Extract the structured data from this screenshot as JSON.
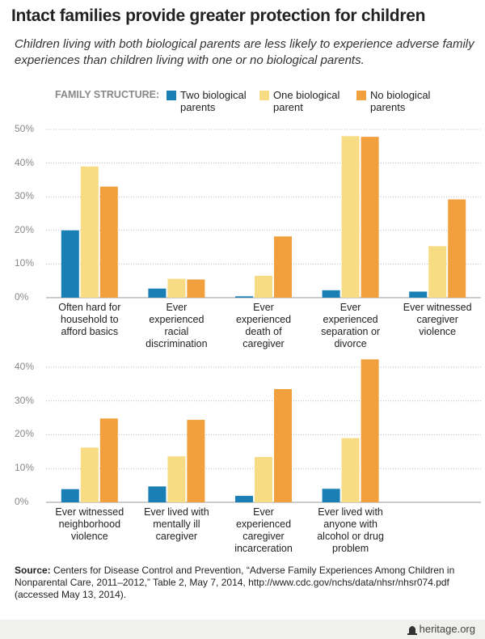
{
  "header": {
    "title": "Intact families provide greater protection for children",
    "subtitle": "Children living with both biological parents are less likely to experience adverse family experiences than children living with one or no biological parents."
  },
  "legend": {
    "title": "FAMILY STRUCTURE:"
  },
  "chart_data": [
    {
      "type": "bar",
      "categories": [
        "Often hard for household to afford basics",
        "Ever experienced racial discrimination",
        "Ever experienced death of caregiver",
        "Ever experienced separation or divorce",
        "Ever witnessed caregiver violence"
      ],
      "series": [
        {
          "name": "Two biological parents",
          "color": "#1a7fb5",
          "values": [
            20,
            2.7,
            0.4,
            2.2,
            1.8
          ]
        },
        {
          "name": "One biological parent",
          "color": "#f7dc84",
          "values": [
            39,
            5.6,
            6.5,
            48,
            15.3
          ]
        },
        {
          "name": "No biological parents",
          "color": "#f2a03d",
          "values": [
            33,
            5.4,
            18.2,
            47.8,
            29.2
          ]
        }
      ],
      "ylim": [
        0,
        50
      ],
      "yticks": [
        {
          "value": 0,
          "label": "0%"
        },
        {
          "value": 10,
          "label": "10%"
        },
        {
          "value": 20,
          "label": "20%"
        },
        {
          "value": 30,
          "label": "30%"
        },
        {
          "value": 40,
          "label": "40%"
        },
        {
          "value": 50,
          "label": "50%"
        }
      ],
      "grid": true
    },
    {
      "type": "bar",
      "categories": [
        "Ever witnessed neighborhood violence",
        "Ever lived with mentally ill caregiver",
        "Ever experienced caregiver incarceration",
        "Ever lived with anyone with alcohol or drug problem"
      ],
      "series": [
        {
          "color": "#1a7fb5",
          "values": [
            3.9,
            4.7,
            1.9,
            4.0
          ]
        },
        {
          "color": "#f7dc84",
          "values": [
            16.2,
            13.6,
            13.4,
            19
          ]
        },
        {
          "color": "#f2a03d",
          "values": [
            24.8,
            24.4,
            33.5,
            42.3
          ]
        }
      ],
      "ylim": [
        0,
        45
      ],
      "yticks": [
        {
          "value": 0,
          "label": "0%"
        },
        {
          "value": 10,
          "label": "10%"
        },
        {
          "value": 20,
          "label": "20%"
        },
        {
          "value": 30,
          "label": "30%"
        },
        {
          "value": 40,
          "label": "40%"
        }
      ],
      "grid": true
    }
  ],
  "source": {
    "label": "Source:",
    "text": "Centers for Disease Control and Prevention, “Adverse Family Experiences Among Children in Nonparental Care, 2011–2012,” Table 2, May 7, 2014, http://www.cdc.gov/nchs/data/nhsr/nhsr074.pdf (accessed May 13, 2014)."
  },
  "footer": {
    "site": "heritage.org"
  }
}
